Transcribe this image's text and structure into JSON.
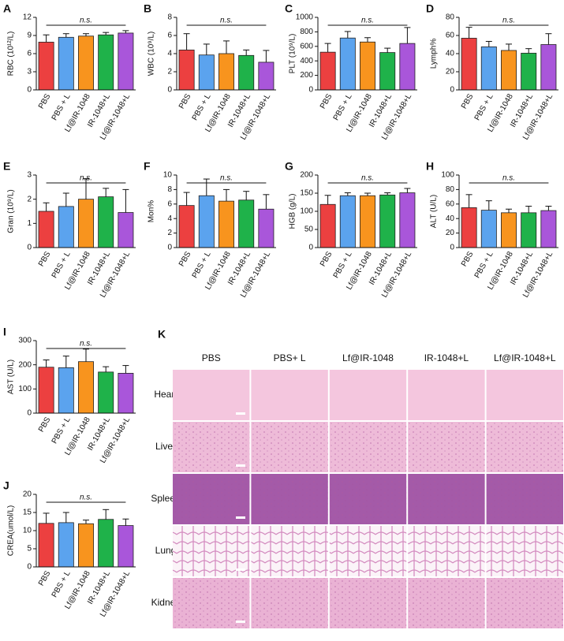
{
  "chart_data": [
    {
      "type": "bar",
      "panel": "A",
      "ylabel": "RBC (10¹²/L)",
      "annotation": "n.s.",
      "categories": [
        "PBS",
        "PBS + L",
        "Lf@IR-1048",
        "IR-1048+L",
        "Lf@IR-1048+L"
      ],
      "values": [
        7.9,
        8.7,
        8.9,
        9.1,
        9.4
      ],
      "errors": [
        1.2,
        0.6,
        0.4,
        0.4,
        0.4
      ],
      "colors": [
        "#ec4040",
        "#5ba3ee",
        "#f8941e",
        "#1fb24a",
        "#a956da"
      ],
      "ylim": [
        0,
        12
      ],
      "yticks": [
        0,
        3,
        6,
        9,
        12
      ]
    },
    {
      "type": "bar",
      "panel": "B",
      "ylabel": "WBC (10⁹/L)",
      "annotation": "n.s.",
      "categories": [
        "PBS",
        "PBS + L",
        "Lf@IR-1048",
        "IR-1048+L",
        "Lf@IR-1048+L"
      ],
      "values": [
        4.4,
        3.85,
        4.0,
        3.8,
        3.05
      ],
      "errors": [
        1.8,
        1.2,
        1.4,
        0.6,
        1.3
      ],
      "colors": [
        "#ec4040",
        "#5ba3ee",
        "#f8941e",
        "#1fb24a",
        "#a956da"
      ],
      "ylim": [
        0,
        8
      ],
      "yticks": [
        0,
        2,
        4,
        6,
        8
      ]
    },
    {
      "type": "bar",
      "panel": "C",
      "ylabel": "PLT (10⁹/L)",
      "annotation": "n.s.",
      "categories": [
        "PBS",
        "PBS + L",
        "Lf@IR-1048",
        "IR-1048+L",
        "Lf@IR-1048+L"
      ],
      "values": [
        520,
        715,
        660,
        515,
        640
      ],
      "errors": [
        120,
        90,
        60,
        60,
        220
      ],
      "colors": [
        "#ec4040",
        "#5ba3ee",
        "#f8941e",
        "#1fb24a",
        "#a956da"
      ],
      "ylim": [
        0,
        1000
      ],
      "yticks": [
        0,
        200,
        400,
        600,
        800,
        1000
      ]
    },
    {
      "type": "bar",
      "panel": "D",
      "ylabel": "Lymph%",
      "annotation": "n.s.",
      "categories": [
        "PBS",
        "PBS + L",
        "Lf@IR-1048",
        "IR-1048+L",
        "Lf@IR-1048+L"
      ],
      "values": [
        57,
        47.5,
        43.5,
        40.5,
        50
      ],
      "errors": [
        12,
        6,
        7,
        5,
        12
      ],
      "colors": [
        "#ec4040",
        "#5ba3ee",
        "#f8941e",
        "#1fb24a",
        "#a956da"
      ],
      "ylim": [
        0,
        80
      ],
      "yticks": [
        0,
        20,
        40,
        60,
        80
      ]
    },
    {
      "type": "bar",
      "panel": "E",
      "ylabel": "Gran (10⁹/L)",
      "annotation": "n.s.",
      "categories": [
        "PBS",
        "PBS + L",
        "Lf@IR-1048",
        "IR-1048+L",
        "Lf@IR-1048+L"
      ],
      "values": [
        1.5,
        1.7,
        2.0,
        2.1,
        1.45
      ],
      "errors": [
        0.35,
        0.55,
        0.85,
        0.35,
        0.95
      ],
      "colors": [
        "#ec4040",
        "#5ba3ee",
        "#f8941e",
        "#1fb24a",
        "#a956da"
      ],
      "ylim": [
        0,
        3
      ],
      "yticks": [
        0,
        1,
        2,
        3
      ]
    },
    {
      "type": "bar",
      "panel": "F",
      "ylabel": "Mon%",
      "annotation": "n.s.",
      "categories": [
        "PBS",
        "PBS + L",
        "Lf@IR-1048",
        "IR-1048+L",
        "Lf@IR-1048+L"
      ],
      "values": [
        5.8,
        7.15,
        6.4,
        6.55,
        5.3
      ],
      "errors": [
        1.8,
        2.3,
        1.6,
        1.2,
        2.0
      ],
      "colors": [
        "#ec4040",
        "#5ba3ee",
        "#f8941e",
        "#1fb24a",
        "#a956da"
      ],
      "ylim": [
        0,
        10
      ],
      "yticks": [
        0,
        2,
        4,
        6,
        8,
        10
      ]
    },
    {
      "type": "bar",
      "panel": "G",
      "ylabel": "HGB (g/L)",
      "annotation": "n.s.",
      "categories": [
        "PBS",
        "PBS + L",
        "Lf@IR-1048",
        "IR-1048+L",
        "Lf@IR-1048+L"
      ],
      "values": [
        119,
        143,
        143,
        145,
        151
      ],
      "errors": [
        25,
        8,
        7,
        6,
        12
      ],
      "colors": [
        "#ec4040",
        "#5ba3ee",
        "#f8941e",
        "#1fb24a",
        "#a956da"
      ],
      "ylim": [
        0,
        200
      ],
      "yticks": [
        0,
        50,
        100,
        150,
        200
      ]
    },
    {
      "type": "bar",
      "panel": "H",
      "ylabel": "ALT (U/L)",
      "annotation": "n.s.",
      "categories": [
        "PBS",
        "PBS + L",
        "Lf@IR-1048",
        "IR-1048+L",
        "Lf@IR-1048+L"
      ],
      "values": [
        55,
        51.5,
        48,
        48,
        51
      ],
      "errors": [
        18,
        13,
        5,
        9,
        6
      ],
      "colors": [
        "#ec4040",
        "#5ba3ee",
        "#f8941e",
        "#1fb24a",
        "#a956da"
      ],
      "ylim": [
        0,
        100
      ],
      "yticks": [
        0,
        20,
        40,
        60,
        80,
        100
      ]
    },
    {
      "type": "bar",
      "panel": "I",
      "ylabel": "AST (U/L)",
      "annotation": "n.s.",
      "categories": [
        "PBS",
        "PBS + L",
        "Lf@IR-1048",
        "IR-1048+L",
        "Lf@IR-1048+L"
      ],
      "values": [
        190,
        188,
        213,
        170,
        165
      ],
      "errors": [
        30,
        48,
        52,
        22,
        32
      ],
      "colors": [
        "#ec4040",
        "#5ba3ee",
        "#f8941e",
        "#1fb24a",
        "#a956da"
      ],
      "ylim": [
        0,
        300
      ],
      "yticks": [
        0,
        100,
        200,
        300
      ]
    },
    {
      "type": "bar",
      "panel": "J",
      "ylabel": "CREA(umol/L)",
      "annotation": "n.s.",
      "categories": [
        "PBS",
        "PBS + L",
        "Lf@IR-1048",
        "IR-1048+L",
        "Lf@IR-1048+L"
      ],
      "values": [
        12,
        12.2,
        11.9,
        13.1,
        11.4
      ],
      "errors": [
        2.8,
        2.8,
        1.0,
        2.7,
        1.8
      ],
      "colors": [
        "#ec4040",
        "#5ba3ee",
        "#f8941e",
        "#1fb24a",
        "#a956da"
      ],
      "ylim": [
        0,
        20
      ],
      "yticks": [
        0,
        5,
        10,
        15,
        20
      ]
    }
  ],
  "panel_k": {
    "panel": "K",
    "columns": [
      "PBS",
      "PBS+ L",
      "Lf@IR-1048",
      "IR-1048+L",
      "Lf@IR-1048+L"
    ],
    "rows": [
      "Heart",
      "Liver",
      "Spleen",
      "Lung",
      "Kidney"
    ]
  }
}
